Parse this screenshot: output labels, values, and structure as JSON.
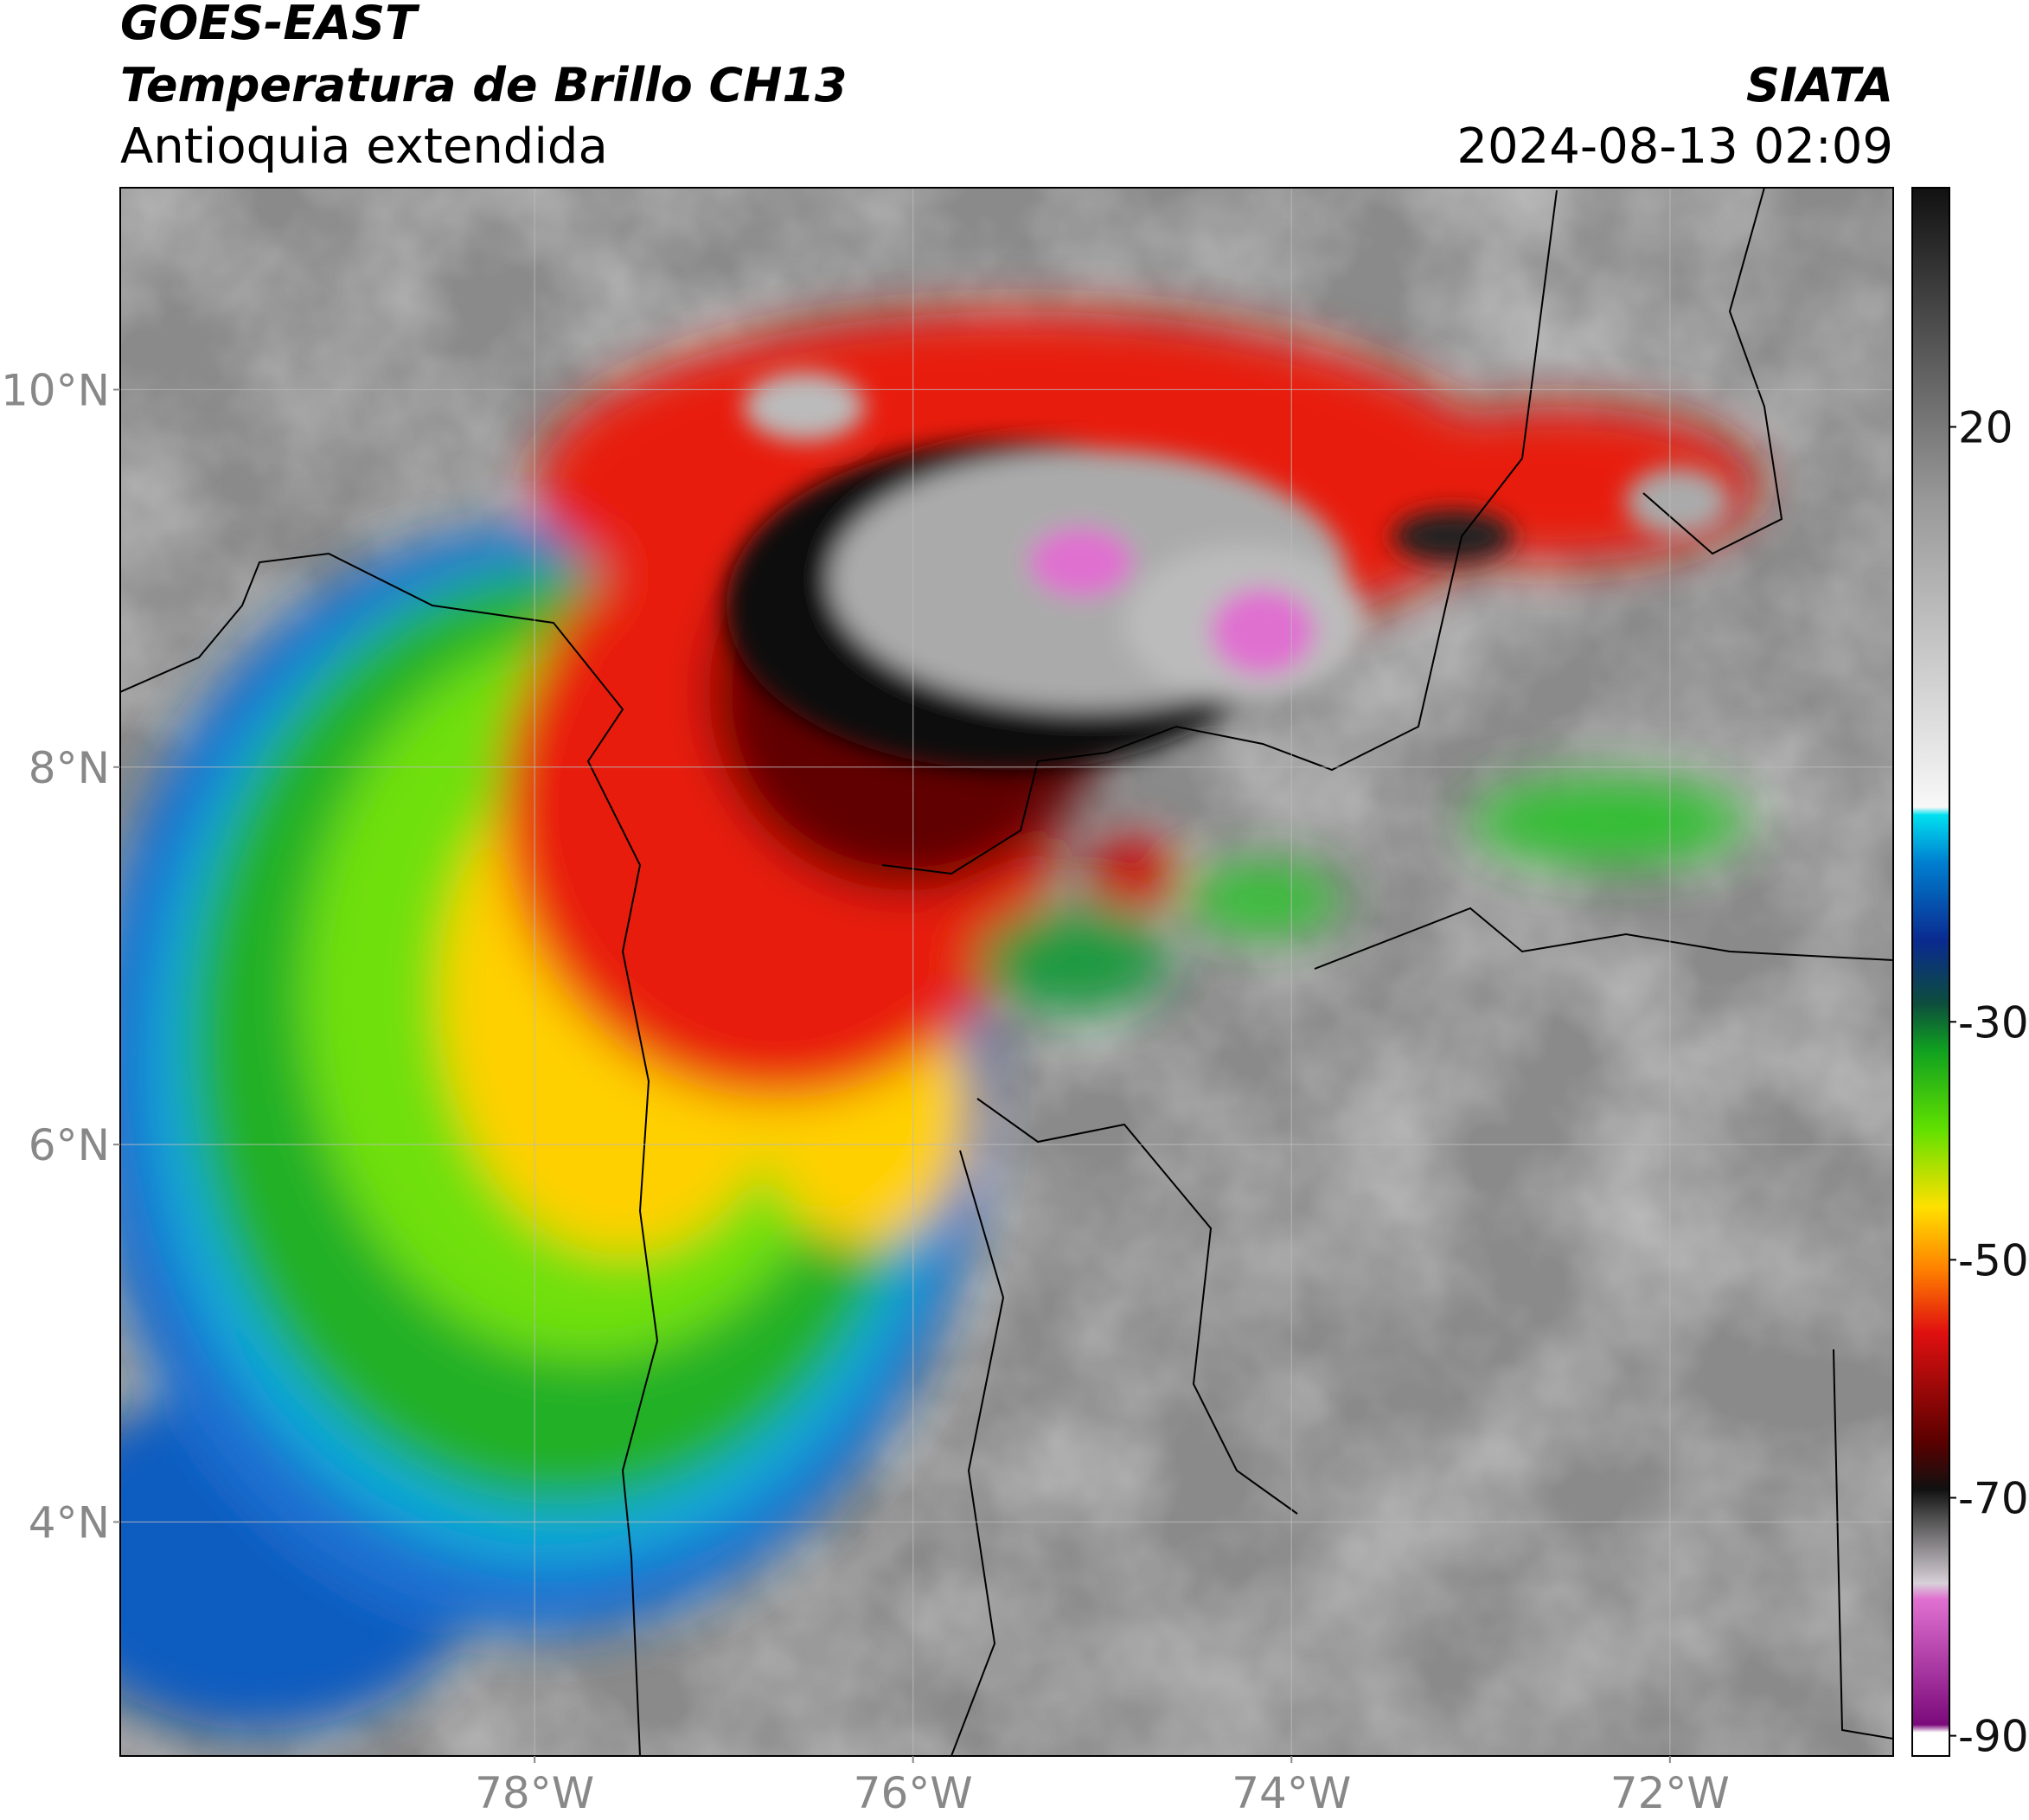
{
  "header": {
    "title": "GOES-EAST",
    "subtitle": "Temperatura de Brillo CH13",
    "region": "Antioquia extendida",
    "source": "SIATA",
    "datetime": "2024-08-13 02:09"
  },
  "chart_data": {
    "type": "map",
    "xlim": [
      -80.19,
      -70.82
    ],
    "ylim": [
      2.76,
      11.07
    ],
    "xticks": [
      {
        "value": -78,
        "label": "78°W"
      },
      {
        "value": -76,
        "label": "76°W"
      },
      {
        "value": -74,
        "label": "74°W"
      },
      {
        "value": -72,
        "label": "72°W"
      }
    ],
    "yticks": [
      {
        "value": 10,
        "label": "10°N"
      },
      {
        "value": 8,
        "label": "8°N"
      },
      {
        "value": 6,
        "label": "6°N"
      },
      {
        "value": 4,
        "label": "4°N"
      }
    ],
    "colorbar_lim": [
      -91.7,
      40.1
    ],
    "colorbar_ticks": [
      20,
      -30,
      -50,
      -70,
      -90
    ],
    "grid": true
  }
}
